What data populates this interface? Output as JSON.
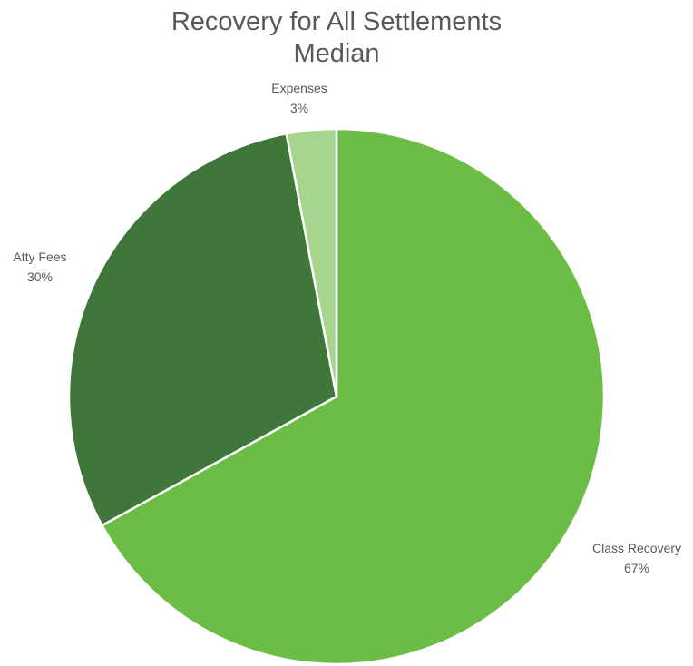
{
  "chart_data": {
    "type": "pie",
    "title": [
      "Recovery for All Settlements",
      "Median"
    ],
    "slices": [
      {
        "label": "Class Recovery",
        "value": 67,
        "value_label": "67%",
        "color": "#6BBD45"
      },
      {
        "label": "Atty Fees",
        "value": 30,
        "value_label": "30%",
        "color": "#3F763A"
      },
      {
        "label": "Expenses",
        "value": 3,
        "value_label": "3%",
        "color": "#A8D58E"
      }
    ],
    "slice_border_color": "#FFFFFF",
    "legend": "none",
    "data_labels": "outside"
  }
}
